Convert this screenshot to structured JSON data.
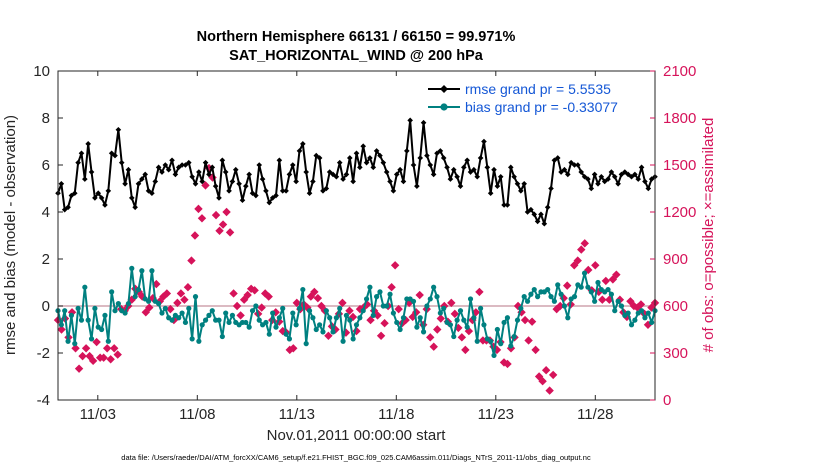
{
  "colors": {
    "rmse": "#000000",
    "bias": "#008080",
    "obs": "#d6135a",
    "zero_line": "#cfa4ae",
    "legend_text": "#1457d6"
  },
  "chart_data": {
    "type": "line",
    "title": "Northern Hemisphere 66131 / 66150 = 99.971%",
    "subtitle": "SAT_HORIZONTAL_WIND @ 200 hPa",
    "xlabel": "Nov.01,2011 00:00:00 start",
    "ylabel": "rmse and bias (model - observation)",
    "ylabel_right": "# of obs: o=possible; ×=assimilated",
    "footer": "data file: /Users/raeder/DAI/ATM_forcXX/CAM6_setup/f.e21.FHIST_BGC.f09_025.CAM6assim.011/Diags_NTrS_2011-11/obs_diag_output.nc",
    "xlim": [
      1,
      31
    ],
    "ylim": [
      -4,
      10
    ],
    "ylim_right": [
      0,
      2100
    ],
    "xticks": [
      3,
      8,
      13,
      18,
      23,
      28
    ],
    "xtick_labels": [
      "11/03",
      "11/08",
      "11/13",
      "11/18",
      "11/23",
      "11/28"
    ],
    "yticks": [
      -4,
      -2,
      0,
      2,
      4,
      6,
      8,
      10
    ],
    "yticks_right": [
      0,
      300,
      600,
      900,
      1200,
      1500,
      1800,
      2100
    ],
    "legend_position": "top-right",
    "series": [
      {
        "name": "rmse grand pr = 5.5535",
        "axis": "left",
        "marker": "diamond",
        "values": [
          4.8,
          5.2,
          4.1,
          4.2,
          4.7,
          4.8,
          6.1,
          6.5,
          5.4,
          6.9,
          5.7,
          4.6,
          4.8,
          4.6,
          4.3,
          4.9,
          6.5,
          6.4,
          7.5,
          6.1,
          5.2,
          5.8,
          4.6,
          4.2,
          5.2,
          5.4,
          5.6,
          4.9,
          4.8,
          5.3,
          5.9,
          5.7,
          6.0,
          5.8,
          6.2,
          5.6,
          5.9,
          6.0,
          6.0,
          6.1,
          5.5,
          5.2,
          5.7,
          5.3,
          6.1,
          5.6,
          5.9,
          5.1,
          4.6,
          6.2,
          5.7,
          4.9,
          5.3,
          5.8,
          5.2,
          4.5,
          5.1,
          5.6,
          4.8,
          4.7,
          6.0,
          5.4,
          4.9,
          4.4,
          4.6,
          4.7,
          6.2,
          4.9,
          4.9,
          5.6,
          6.0,
          5.3,
          6.6,
          6.9,
          5.7,
          4.8,
          5.3,
          6.4,
          6.3,
          4.9,
          5.0,
          5.7,
          5.6,
          5.5,
          6.1,
          5.4,
          5.6,
          6.3,
          5.3,
          6.5,
          5.9,
          6.8,
          6.1,
          6.3,
          5.9,
          6.6,
          6.4,
          6.1,
          5.7,
          5.3,
          4.9,
          5.6,
          5.8,
          5.3,
          6.6,
          7.9,
          6.0,
          5.1,
          6.3,
          7.8,
          6.4,
          6.0,
          5.6,
          6.5,
          6.6,
          6.3,
          5.9,
          5.4,
          5.8,
          5.5,
          5.1,
          5.9,
          6.2,
          5.7,
          5.8,
          5.5,
          6.3,
          7.0,
          5.9,
          4.8,
          5.8,
          5.1,
          5.5,
          4.3,
          4.3,
          5.9,
          5.5,
          5.2,
          4.9,
          5.2,
          4.0,
          4.1,
          3.9,
          3.6,
          3.9,
          3.5,
          4.2,
          5.0,
          6.2,
          6.3,
          5.7,
          5.8,
          5.6,
          6.1,
          6.0,
          6.0,
          5.7,
          5.5,
          5.4,
          5.0,
          5.6,
          5.2,
          5.5,
          5.3,
          5.4,
          5.7,
          5.5,
          5.2,
          5.6,
          5.7,
          5.6,
          5.5,
          5.6,
          5.4,
          5.9,
          5.3,
          5.0,
          5.4,
          5.5
        ]
      },
      {
        "name": "bias grand pr = -0.33077",
        "axis": "left",
        "marker": "circle",
        "values": [
          -0.2,
          -0.8,
          -0.2,
          -1.5,
          -0.4,
          -1.6,
          -0.1,
          -0.6,
          0.8,
          -0.6,
          -1.4,
          -0.1,
          -0.9,
          -1.0,
          -0.4,
          -1.5,
          0.6,
          -0.2,
          0.1,
          -0.2,
          -0.3,
          0.1,
          1.6,
          0.4,
          0.7,
          1.5,
          0.3,
          0.2,
          1.5,
          0.2,
          0.1,
          -0.3,
          -0.1,
          -0.5,
          -0.6,
          -0.4,
          -0.5,
          -0.3,
          -0.7,
          -0.1,
          -1.4,
          0.4,
          -1.5,
          -0.8,
          -0.6,
          -0.4,
          -0.2,
          -0.6,
          -0.6,
          -1.3,
          -0.3,
          -0.7,
          -0.4,
          -0.7,
          -0.8,
          -0.7,
          -0.7,
          -0.9,
          -0.2,
          0.0,
          -0.6,
          -0.8,
          -0.7,
          -1.2,
          -0.3,
          -0.9,
          -0.5,
          -0.1,
          -1.2,
          -1.4,
          -0.3,
          -0.8,
          -0.1,
          0.7,
          -1.6,
          -0.2,
          -0.5,
          -1.0,
          -0.8,
          -1.1,
          -0.2,
          -0.5,
          -1.1,
          -0.5,
          -0.1,
          -1.5,
          -0.4,
          -0.6,
          -1.4,
          -0.8,
          -0.5,
          -0.2,
          0.3,
          0.8,
          -0.4,
          0.4,
          0.6,
          0.0,
          0.0,
          0.5,
          -0.3,
          -0.7,
          -1.0,
          -0.5,
          0.3,
          0.3,
          0.2,
          -0.9,
          -0.5,
          -1.1,
          0.0,
          0.3,
          0.8,
          0.4,
          -0.3,
          -0.1,
          -0.7,
          -0.8,
          -1.3,
          -0.6,
          -0.2,
          -0.6,
          -0.9,
          0.3,
          -0.5,
          -1.5,
          -0.1,
          -0.8,
          -1.4,
          -1.5,
          -2.1,
          -1.0,
          -1.6,
          -0.7,
          -0.5,
          -1.7,
          -1.3,
          -0.6,
          -0.1,
          0.4,
          0.2,
          0.5,
          0.7,
          0.4,
          0.6,
          0.6,
          0.7,
          0.4,
          0.2,
          0.9,
          0.5,
          0.0,
          -0.5,
          0.3,
          0.4,
          0.9,
          0.8,
          1.4,
          0.8,
          0.6,
          0.2,
          1.0,
          0.7,
          0.6,
          0.7,
          0.5,
          -0.2,
          0.2,
          0.0,
          -0.4,
          -0.3,
          -0.8,
          -0.6,
          -0.3,
          -0.2,
          -0.5,
          -0.3,
          -0.7,
          -0.2
        ]
      },
      {
        "name": "possible",
        "axis": "right",
        "marker": "x",
        "values": [
          510,
          450,
          520,
          400,
          560,
          330,
          200,
          280,
          330,
          280,
          250,
          370,
          270,
          270,
          330,
          260,
          330,
          290,
          580,
          570,
          600,
          640,
          710,
          690,
          660,
          560,
          590,
          650,
          740,
          630,
          660,
          680,
          580,
          510,
          620,
          680,
          640,
          720,
          890,
          1050,
          1220,
          1160,
          1370,
          1480,
          1420,
          1180,
          1080,
          1120,
          1200,
          1070,
          680,
          600,
          540,
          640,
          670,
          710,
          700,
          550,
          590,
          680,
          660,
          510,
          560,
          500,
          440,
          430,
          320,
          330,
          620,
          580,
          610,
          590,
          660,
          690,
          650,
          600,
          570,
          410,
          470,
          450,
          550,
          620,
          430,
          570,
          530,
          440,
          580,
          590,
          610,
          510,
          570,
          540,
          410,
          490,
          600,
          720,
          860,
          580,
          490,
          510,
          620,
          530,
          560,
          670,
          480,
          580,
          400,
          340,
          450,
          520,
          600,
          500,
          620,
          550,
          460,
          400,
          320,
          440,
          510,
          560,
          690,
          380,
          380,
          380,
          340,
          320,
          370,
          240,
          230,
          330,
          400,
          600,
          560,
          510,
          380,
          500,
          320,
          150,
          120,
          190,
          60,
          160,
          580,
          600,
          650,
          730,
          610,
          860,
          890,
          960,
          1000,
          830,
          700,
          860,
          690,
          640,
          760,
          640,
          770,
          800,
          640,
          560,
          530,
          630,
          600,
          590,
          610,
          550,
          480,
          590,
          620
        ]
      }
    ]
  }
}
